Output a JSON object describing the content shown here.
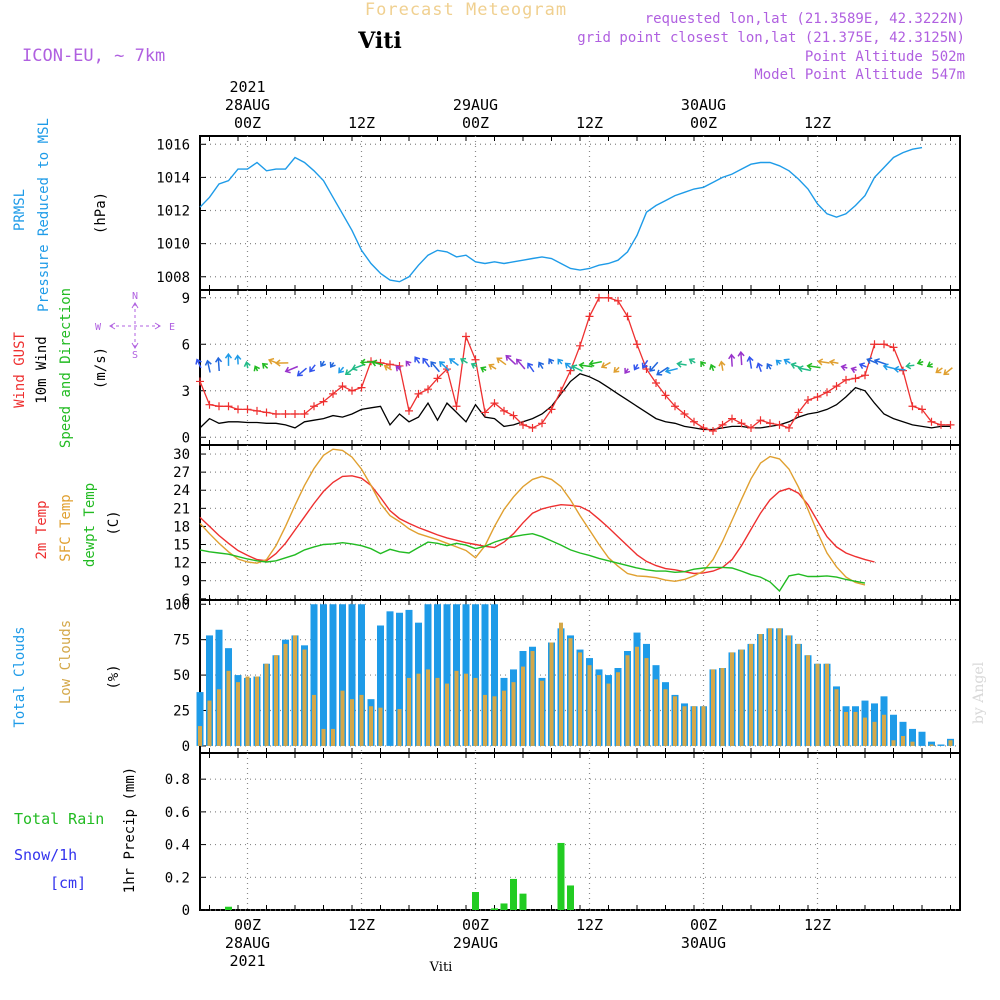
{
  "header": {
    "product": "Forecast Meteogram",
    "station": "Viti",
    "model": "ICON-EU, ~ 7km",
    "requested": "requested lon,lat (21.3589E, 42.3222N)",
    "grid_point": "grid point closest lon,lat (21.375E, 42.3125N)",
    "point_altitude": "Point Altitude 502m",
    "model_altitude": "Model Point Altitude 547m"
  },
  "footer": {
    "station": "Viti",
    "watermark": "by Angel"
  },
  "colors": {
    "pressure": "#1e9be8",
    "gust": "#ee3030",
    "wind": "#000000",
    "direction": "#22bb22",
    "t2m": "#ee3030",
    "sfc": "#e0a030",
    "dewpt": "#22bb22",
    "total_clouds": "#1e9be8",
    "low_clouds": "#d4a84a",
    "rain": "#22cc22",
    "snow": "#3333ee",
    "purple": "#b060e0",
    "grid": "#888888"
  },
  "chart_data": [
    {
      "type": "line",
      "panel": "pressure",
      "ylabel_lines": [
        "PRMSL",
        "Pressure Reduced to MSL"
      ],
      "unit": "(hPa)",
      "ylim": [
        1007.2,
        1016.5
      ],
      "yticks": [
        1008,
        1010,
        1012,
        1014,
        1016
      ],
      "x_start_hour": -5,
      "series": [
        {
          "name": "PRMSL",
          "values": [
            1012.2,
            1012.8,
            1013.6,
            1013.8,
            1014.5,
            1014.5,
            1014.9,
            1014.4,
            1014.5,
            1014.5,
            1015.2,
            1014.9,
            1014.4,
            1013.8,
            1012.8,
            1011.8,
            1010.8,
            1009.6,
            1008.8,
            1008.2,
            1007.8,
            1007.7,
            1008.0,
            1008.7,
            1009.3,
            1009.6,
            1009.5,
            1009.2,
            1009.3,
            1008.9,
            1008.8,
            1008.9,
            1008.8,
            1008.9,
            1009.0,
            1009.1,
            1009.2,
            1009.1,
            1008.8,
            1008.5,
            1008.4,
            1008.5,
            1008.7,
            1008.8,
            1009.0,
            1009.5,
            1010.5,
            1011.9,
            1012.3,
            1012.6,
            1012.9,
            1013.1,
            1013.3,
            1013.4,
            1013.7,
            1014.0,
            1014.2,
            1014.5,
            1014.8,
            1014.9,
            1014.9,
            1014.7,
            1014.4,
            1013.9,
            1013.3,
            1012.4,
            1011.8,
            1011.6,
            1011.8,
            1012.3,
            1012.9,
            1014.0,
            1014.6,
            1015.2,
            1015.5,
            1015.7,
            1015.8
          ]
        }
      ]
    },
    {
      "type": "line",
      "panel": "wind",
      "ylabel_lines": [
        "Wind GUST",
        "10m Wind",
        "Speed and Direction"
      ],
      "unit": "(m/s)",
      "compass": {
        "n": "N",
        "w": "W",
        "e": "E",
        "s": "S"
      },
      "ylim": [
        -0.5,
        9.5
      ],
      "yticks": [
        0,
        3,
        6,
        9
      ],
      "x_start_hour": -5,
      "series": [
        {
          "name": "Wind GUST",
          "values": [
            3.6,
            2.1,
            2.0,
            2.0,
            1.8,
            1.8,
            1.7,
            1.6,
            1.5,
            1.5,
            1.5,
            1.5,
            2.0,
            2.3,
            2.8,
            3.3,
            3.0,
            3.2,
            4.9,
            4.8,
            4.7,
            4.6,
            1.7,
            2.8,
            3.1,
            3.8,
            4.4,
            2.0,
            6.5,
            5.0,
            1.6,
            2.2,
            1.7,
            1.4,
            0.8,
            0.6,
            0.9,
            1.8,
            3.0,
            4.3,
            5.9,
            7.8,
            9.0,
            9.0,
            8.8,
            7.8,
            6.0,
            4.4,
            3.5,
            2.7,
            2.0,
            1.5,
            1.0,
            0.6,
            0.4,
            0.8,
            1.2,
            0.9,
            0.6,
            1.1,
            0.9,
            0.8,
            0.6,
            1.6,
            2.4,
            2.6,
            2.9,
            3.3,
            3.7,
            3.8,
            4.0,
            6.0,
            6.0,
            5.8,
            4.3,
            2.0,
            1.8,
            1.0,
            0.8,
            0.8
          ]
        },
        {
          "name": "10m Wind",
          "values": [
            0.6,
            1.2,
            0.9,
            1.0,
            1.0,
            0.95,
            0.95,
            0.9,
            0.9,
            0.8,
            0.6,
            1.0,
            1.1,
            1.2,
            1.4,
            1.3,
            1.5,
            1.8,
            1.9,
            2.0,
            0.8,
            1.5,
            1.0,
            1.3,
            2.2,
            1.1,
            2.2,
            1.6,
            1.0,
            2.1,
            1.3,
            1.2,
            0.7,
            0.8,
            1.0,
            1.2,
            1.5,
            2.0,
            2.8,
            3.6,
            4.1,
            3.9,
            3.6,
            3.2,
            2.8,
            2.4,
            2.0,
            1.6,
            1.2,
            1.0,
            0.9,
            0.7,
            0.6,
            0.5,
            0.5,
            0.6,
            0.7,
            0.7,
            0.6,
            0.6,
            0.7,
            0.8,
            1.0,
            1.3,
            1.5,
            1.6,
            1.8,
            2.1,
            2.6,
            3.2,
            3.0,
            2.2,
            1.5,
            1.2,
            1.0,
            0.8,
            0.7,
            0.6,
            0.7,
            0.7
          ]
        },
        {
          "name": "Speed and Direction",
          "values": []
        }
      ]
    },
    {
      "type": "line",
      "panel": "temperature",
      "ylabel_lines": [
        "2m Temp",
        "SFC Temp",
        "dewpt Temp"
      ],
      "unit": "(C)",
      "ylim": [
        5.8,
        31.5
      ],
      "yticks": [
        6,
        9,
        12,
        15,
        18,
        21,
        24,
        27,
        30
      ],
      "x_start_hour": -5,
      "series": [
        {
          "name": "2m Temp",
          "values": [
            19.5,
            18.0,
            16.5,
            15.2,
            14.0,
            13.2,
            12.5,
            12.3,
            13.5,
            15.2,
            17.4,
            19.6,
            21.8,
            23.8,
            25.3,
            26.3,
            26.4,
            26.0,
            24.8,
            22.8,
            20.6,
            19.3,
            18.5,
            17.8,
            17.2,
            16.6,
            16.1,
            15.7,
            15.3,
            15.0,
            14.7,
            14.5,
            15.4,
            16.8,
            18.6,
            20.2,
            20.9,
            21.3,
            21.6,
            21.5,
            21.3,
            20.5,
            19.2,
            17.8,
            16.3,
            14.8,
            13.3,
            12.2,
            11.5,
            11.0,
            10.8,
            10.5,
            10.2,
            10.3,
            10.6,
            11.2,
            12.5,
            14.8,
            17.5,
            20.2,
            22.4,
            23.8,
            24.3,
            23.5,
            21.6,
            18.9,
            16.3,
            14.6,
            13.6,
            13.0,
            12.5,
            12.1
          ]
        },
        {
          "name": "SFC Temp",
          "values": [
            18.5,
            16.8,
            15.2,
            13.8,
            12.6,
            12.1,
            11.9,
            12.5,
            14.8,
            18.0,
            21.5,
            24.8,
            27.6,
            29.8,
            30.8,
            30.6,
            29.5,
            27.5,
            24.8,
            21.8,
            19.8,
            18.8,
            17.6,
            16.8,
            16.3,
            15.8,
            15.2,
            14.6,
            14.0,
            12.8,
            14.8,
            18.0,
            20.8,
            22.9,
            24.6,
            25.8,
            26.3,
            25.8,
            24.6,
            22.4,
            19.8,
            17.4,
            15.0,
            12.8,
            11.4,
            10.2,
            9.8,
            9.7,
            9.5,
            9.1,
            8.9,
            9.2,
            9.8,
            10.6,
            12.5,
            15.5,
            19.0,
            22.5,
            25.9,
            28.5,
            29.6,
            29.2,
            27.5,
            24.5,
            20.8,
            17.0,
            13.6,
            11.3,
            9.6,
            8.7,
            8.3
          ]
        },
        {
          "name": "dewpt Temp",
          "values": [
            14.1,
            13.8,
            13.6,
            13.4,
            13.0,
            12.6,
            12.3,
            12.1,
            12.3,
            12.8,
            13.3,
            14.1,
            14.6,
            15.0,
            15.1,
            15.3,
            15.1,
            14.8,
            14.3,
            13.5,
            14.2,
            13.8,
            13.6,
            14.5,
            15.4,
            15.2,
            14.8,
            15.2,
            14.9,
            14.3,
            14.7,
            15.4,
            15.9,
            16.3,
            16.6,
            16.8,
            16.3,
            15.6,
            14.9,
            14.1,
            13.6,
            13.2,
            12.7,
            12.3,
            11.9,
            11.5,
            11.1,
            10.8,
            10.6,
            10.6,
            10.4,
            10.5,
            10.9,
            11.1,
            11.2,
            11.2,
            11.1,
            10.6,
            10.0,
            9.6,
            8.8,
            7.3,
            9.8,
            10.1,
            9.7,
            9.7,
            9.8,
            9.6,
            9.2,
            8.9,
            8.6
          ]
        }
      ]
    },
    {
      "type": "bar",
      "panel": "clouds",
      "ylabel_lines": [
        "Total Clouds",
        "Low Clouds"
      ],
      "unit": "(%)",
      "ylim": [
        -5,
        103
      ],
      "yticks": [
        0,
        25,
        50,
        75,
        100
      ],
      "x_start_hour": -5,
      "series": [
        {
          "name": "Total Clouds",
          "values": [
            38,
            78,
            82,
            69,
            50,
            48,
            49,
            58,
            64,
            75,
            78,
            71,
            100,
            100,
            100,
            100,
            100,
            100,
            33,
            85,
            95,
            94,
            96,
            87,
            100,
            100,
            100,
            100,
            100,
            100,
            100,
            100,
            48,
            54,
            67,
            70,
            48,
            73,
            83,
            78,
            68,
            62,
            54,
            50,
            55,
            67,
            80,
            72,
            57,
            45,
            36,
            30,
            28,
            28,
            54,
            55,
            66,
            68,
            72,
            79,
            83,
            83,
            78,
            72,
            64,
            58,
            58,
            42,
            28,
            28,
            32,
            30,
            35,
            22,
            17,
            12,
            10,
            3,
            1,
            5,
            7,
            3
          ]
        },
        {
          "name": "Low Clouds",
          "values": [
            14,
            32,
            40,
            53,
            45,
            49,
            49,
            58,
            64,
            72,
            78,
            68,
            36,
            12,
            12,
            39,
            33,
            36,
            28,
            27,
            0,
            26,
            48,
            51,
            54,
            48,
            44,
            53,
            51,
            48,
            36,
            35,
            39,
            45,
            56,
            67,
            46,
            73,
            87,
            76,
            66,
            57,
            50,
            44,
            52,
            64,
            70,
            62,
            47,
            40,
            35,
            28,
            28,
            28,
            54,
            55,
            66,
            68,
            72,
            79,
            83,
            83,
            78,
            72,
            64,
            58,
            58,
            40,
            24,
            24,
            20,
            17,
            22,
            4,
            7,
            3,
            0,
            1,
            0,
            4,
            4,
            0
          ]
        }
      ]
    },
    {
      "type": "bar",
      "panel": "precipitation",
      "ylabel_lines": [
        "Total Rain",
        "Snow/1h",
        "[cm]"
      ],
      "y_axis_label": "1hr Precip (mm)",
      "ylim": [
        0,
        0.96
      ],
      "yticks": [
        0,
        0.2,
        0.4,
        0.6,
        0.8
      ],
      "ytick_labels": [
        "0",
        "0.2",
        "0.4",
        "0.6",
        "0.8"
      ],
      "x_start_hour": -5,
      "series": [
        {
          "name": "Total Rain",
          "values": [
            0,
            0,
            0,
            0.02,
            0,
            0,
            0,
            0,
            0,
            0,
            0,
            0,
            0,
            0,
            0,
            0,
            0,
            0,
            0,
            0,
            0,
            0,
            0,
            0,
            0,
            0,
            0,
            0,
            0,
            0.11,
            0,
            0.01,
            0.04,
            0.19,
            0.1,
            0,
            0,
            0,
            0.41,
            0.15,
            0,
            0,
            0,
            0,
            0,
            0,
            0,
            0,
            0,
            0,
            0,
            0,
            0,
            0,
            0,
            0,
            0,
            0,
            0,
            0,
            0,
            0,
            0,
            0,
            0,
            0,
            0,
            0,
            0,
            0,
            0,
            0,
            0,
            0,
            0,
            0,
            0,
            0,
            0,
            0,
            0,
            0,
            0,
            0
          ]
        },
        {
          "name": "Snow/1h",
          "values": []
        }
      ]
    }
  ],
  "x_axis": {
    "top": [
      {
        "hour": 0,
        "lines": [
          "2021",
          "28AUG",
          "00Z"
        ]
      },
      {
        "hour": 12,
        "lines": [
          "12Z"
        ]
      },
      {
        "hour": 24,
        "lines": [
          "29AUG",
          "00Z"
        ]
      },
      {
        "hour": 36,
        "lines": [
          "12Z"
        ]
      },
      {
        "hour": 48,
        "lines": [
          "30AUG",
          "00Z"
        ]
      },
      {
        "hour": 60,
        "lines": [
          "12Z"
        ]
      }
    ],
    "bottom": [
      {
        "hour": 0,
        "lines": [
          "00Z",
          "28AUG",
          "2021"
        ]
      },
      {
        "hour": 12,
        "lines": [
          "12Z"
        ]
      },
      {
        "hour": 24,
        "lines": [
          "00Z",
          "29AUG"
        ]
      },
      {
        "hour": 36,
        "lines": [
          "12Z"
        ]
      },
      {
        "hour": 48,
        "lines": [
          "00Z",
          "30AUG"
        ]
      },
      {
        "hour": 60,
        "lines": [
          "12Z"
        ]
      }
    ]
  }
}
